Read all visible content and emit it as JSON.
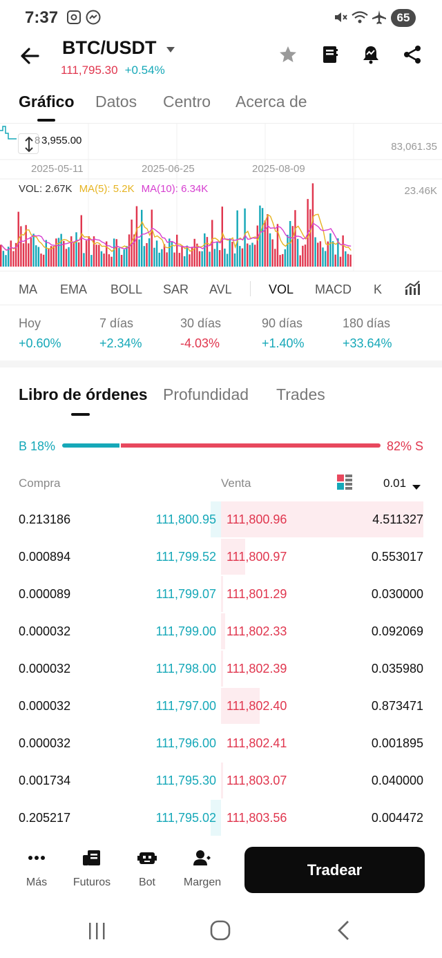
{
  "status": {
    "time": "7:37",
    "battery": "65"
  },
  "header": {
    "pair": "BTC/USDT",
    "price": "111,795.30",
    "change": "+0.54%"
  },
  "tabs": [
    "Gráfico",
    "Datos",
    "Centro",
    "Acerca de"
  ],
  "chart": {
    "crosshair_price": "3,955.00",
    "crosshair_prefix": "8",
    "right_price": "83,061.35",
    "dates": [
      "2025-05-11",
      "2025-06-25",
      "2025-08-09"
    ],
    "vol_label": "VOL: 2.67K",
    "ma5_label": "MA(5): 5.2K",
    "ma10_label": "MA(10): 6.34K",
    "vol_max": "23.46K",
    "colors": {
      "up": "#16a8b8",
      "down": "#e0364e",
      "ma5": "#e6b422",
      "ma10": "#d63fd0"
    }
  },
  "indicators": [
    "MA",
    "EMA",
    "BOLL",
    "SAR",
    "AVL",
    "VOL",
    "MACD",
    "K"
  ],
  "performance": [
    {
      "label": "Hoy",
      "value": "+0.60%",
      "dir": "up"
    },
    {
      "label": "7 días",
      "value": "+2.34%",
      "dir": "up"
    },
    {
      "label": "30 días",
      "value": "-4.03%",
      "dir": "down"
    },
    {
      "label": "90 días",
      "value": "+1.40%",
      "dir": "up"
    },
    {
      "label": "180 días",
      "value": "+33.64%",
      "dir": "up"
    }
  ],
  "book_tabs": [
    "Libro de órdenes",
    "Profundidad",
    "Trades"
  ],
  "ratio": {
    "buy_label": "B 18%",
    "sell_label": "82% S",
    "buy_fraction": 0.18
  },
  "book_header": {
    "buy": "Compra",
    "sell": "Venta",
    "precision": "0.01"
  },
  "book": [
    {
      "bq": "0.213186",
      "bp": "111,800.95",
      "sp": "111,800.96",
      "sq": "4.511327",
      "bdepth": 0.05,
      "sdepth": 1.0
    },
    {
      "bq": "0.000894",
      "bp": "111,799.52",
      "sp": "111,800.97",
      "sq": "0.553017",
      "bdepth": 0.0,
      "sdepth": 0.12
    },
    {
      "bq": "0.000089",
      "bp": "111,799.07",
      "sp": "111,801.29",
      "sq": "0.030000",
      "bdepth": 0.0,
      "sdepth": 0.01
    },
    {
      "bq": "0.000032",
      "bp": "111,799.00",
      "sp": "111,802.33",
      "sq": "0.092069",
      "bdepth": 0.0,
      "sdepth": 0.02
    },
    {
      "bq": "0.000032",
      "bp": "111,798.00",
      "sp": "111,802.39",
      "sq": "0.035980",
      "bdepth": 0.0,
      "sdepth": 0.01
    },
    {
      "bq": "0.000032",
      "bp": "111,797.00",
      "sp": "111,802.40",
      "sq": "0.873471",
      "bdepth": 0.0,
      "sdepth": 0.19
    },
    {
      "bq": "0.000032",
      "bp": "111,796.00",
      "sp": "111,802.41",
      "sq": "0.001895",
      "bdepth": 0.0,
      "sdepth": 0.0
    },
    {
      "bq": "0.001734",
      "bp": "111,795.30",
      "sp": "111,803.07",
      "sq": "0.040000",
      "bdepth": 0.0,
      "sdepth": 0.01
    },
    {
      "bq": "0.205217",
      "bp": "111,795.02",
      "sp": "111,803.56",
      "sq": "0.004472",
      "bdepth": 0.05,
      "sdepth": 0.0
    }
  ],
  "bottom_nav": [
    {
      "label": "Más",
      "icon": "more-icon"
    },
    {
      "label": "Futuros",
      "icon": "futures-icon"
    },
    {
      "label": "Bot",
      "icon": "bot-icon"
    },
    {
      "label": "Margen",
      "icon": "margin-icon"
    }
  ],
  "trade_button": "Tradear"
}
